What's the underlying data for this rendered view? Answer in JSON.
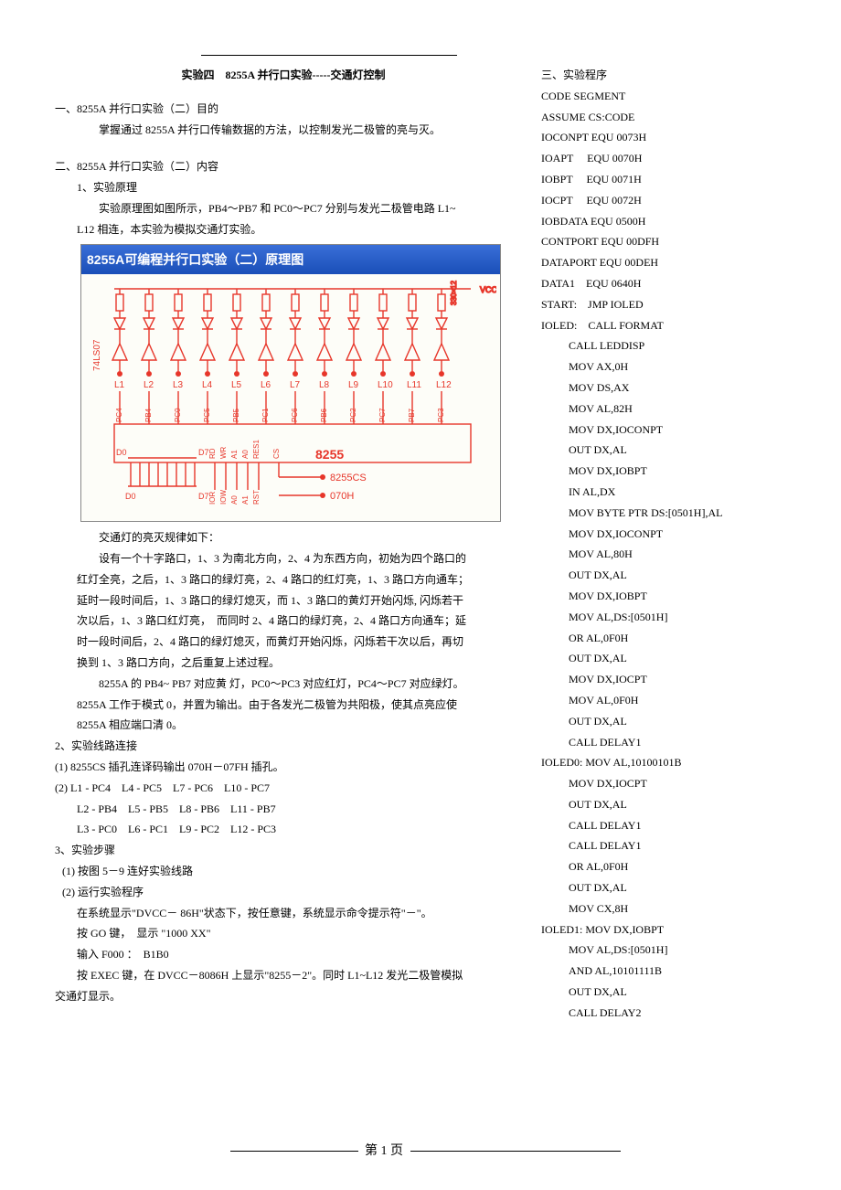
{
  "title": "实验四　8255A 并行口实验-----交通灯控制",
  "sec1": {
    "heading": "一、8255A 并行口实验（二）目的",
    "line1": "掌握通过 8255A 并行口传输数据的方法，以控制发光二极管的亮与灭。"
  },
  "sec2": {
    "heading": "二、8255A 并行口实验（二）内容",
    "s1": "1、实验原理",
    "s1a": "实验原理图如图所示，PB4～PB7 和 PC0～PC7 分别与发光二极管电路 L1~",
    "s1b": "L12 相连，本实验为模拟交通灯实验。",
    "diagram_title": "8255A可编程并行口实验（二）原理图",
    "diagram": {
      "vcc_label": "VCC",
      "res_label": "330×12",
      "chip_label_left": "74LS07",
      "l_labels": [
        "L1",
        "L2",
        "L3",
        "L4",
        "L5",
        "L6",
        "L7",
        "L8",
        "L9",
        "L10",
        "L11",
        "L12"
      ],
      "port_labels": [
        "PC4",
        "PB4",
        "PC0",
        "PC5",
        "PB5",
        "PC1",
        "PC6",
        "PB6",
        "PC2",
        "PC7",
        "PB7",
        "PC3"
      ],
      "bus_left": "D0",
      "bus_right": "D7",
      "chip_pins": [
        "RD",
        "WR",
        "A1",
        "A0",
        "RES1"
      ],
      "chip8255": "8255",
      "cs_label": "CS",
      "ctrl_bus_left": "D0",
      "ctrl_bus_right": "D7",
      "ctrl_pins": [
        "IOR",
        "IOW",
        "A0",
        "A1",
        "RST"
      ],
      "cs_target": "8255CS",
      "addr_target": "070H",
      "color_red": "#e7362a",
      "bg": "#fdfdf8"
    },
    "p0": "交通灯的亮灭规律如下：",
    "p1": "设有一个十字路口，1、3 为南北方向，2、4 为东西方向，初始为四个路口的",
    "p2": "红灯全亮，之后，1、3 路口的绿灯亮，2、4 路口的红灯亮，1、3 路口方向通车；",
    "p3": "延时一段时间后，1、3 路口的绿灯熄灭，而 1、3 路口的黄灯开始闪烁, 闪烁若干",
    "p4": "次以后，1、3 路口红灯亮，　而同时 2、4 路口的绿灯亮，2、4 路口方向通车；延",
    "p5": "时一段时间后，2、4 路口的绿灯熄灭，而黄灯开始闪烁，闪烁若干次以后，再切",
    "p6": "换到 1、3 路口方向，之后重复上述过程。",
    "p7": "8255A 的 PB4~ PB7 对应黄 灯，PC0～PC3 对应红灯，PC4～PC7 对应绿灯。",
    "p8": "8255A 工作于模式 0，并置为输出。由于各发光二极管为共阳极，使其点亮应使",
    "p9": "8255A 相应端口清 0。",
    "s2": "2、实验线路连接",
    "s2a": "(1) 8255CS 插孔连译码输出 070H－07FH 插孔。",
    "s2b": "(2) L1 - PC4　L4 - PC5　L7 - PC6　L10 - PC7",
    "s2c": "　　L2 - PB4　L5 - PB5　L8 - PB6　L11 - PB7",
    "s2d": "　　L3 - PC0　L6 - PC1　L9 - PC2　L12 - PC3",
    "s3": "3、实验步骤",
    "s3a": "(1) 按图 5－9 连好实验线路",
    "s3b": "(2) 运行实验程序",
    "s3c": "在系统显示\"DVCC－ 86H\"状态下，按任意键，系统显示命令提示符\"－\"。",
    "s3d": "按 GO 键，　显示 \"1000 XX\"",
    "s3e": "输入 F000 ：　B1B0",
    "s3f": "按 EXEC 键，在 DVCC－8086H 上显示\"8255－2\"。同时 L1~L12 发光二极管模拟",
    "s3g": "交通灯显示。"
  },
  "sec3": {
    "heading": "三、实验程序",
    "lines": [
      "CODE SEGMENT",
      "ASSUME CS:CODE",
      "IOCONPT EQU 0073H",
      "IOAPT     EQU 0070H",
      "IOBPT     EQU 0071H",
      "IOCPT     EQU 0072H",
      "IOBDATA EQU 0500H",
      "CONTPORT EQU 00DFH",
      "DATAPORT EQU 00DEH",
      "DATA1    EQU 0640H",
      "START:    JMP IOLED",
      "IOLED:    CALL FORMAT"
    ],
    "code": [
      "CALL LEDDISP",
      "MOV AX,0H",
      "MOV DS,AX",
      "MOV AL,82H",
      "MOV DX,IOCONPT",
      "OUT DX,AL",
      "MOV DX,IOBPT",
      "IN AL,DX",
      "MOV BYTE PTR DS:[0501H],AL",
      "MOV DX,IOCONPT",
      "MOV AL,80H",
      "OUT DX,AL",
      "MOV DX,IOBPT",
      "MOV AL,DS:[0501H]",
      "OR AL,0F0H",
      "OUT DX,AL",
      "MOV DX,IOCPT",
      "MOV AL,0F0H",
      "OUT DX,AL",
      "CALL DELAY1"
    ],
    "label0": "IOLED0: MOV AL,10100101B",
    "code2": [
      "MOV DX,IOCPT",
      "OUT DX,AL",
      "CALL DELAY1",
      "CALL DELAY1",
      "OR AL,0F0H",
      "OUT DX,AL",
      "MOV CX,8H"
    ],
    "label1": "IOLED1: MOV DX,IOBPT",
    "code3": [
      "MOV AL,DS:[0501H]",
      "AND AL,10101111B",
      "OUT DX,AL",
      "CALL DELAY2"
    ]
  },
  "footer": "第 1 页"
}
